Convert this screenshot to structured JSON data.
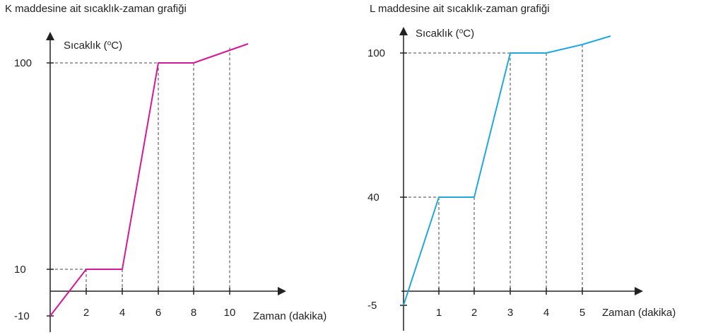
{
  "chart_data": [
    {
      "id": "K",
      "type": "line",
      "title": "K maddesine ait sıcaklık-zaman grafiği",
      "xlabel": "Zaman (dakika)",
      "ylabel": "Sıcaklık (°C)",
      "ylabel_prefix": "Sıcaklık (",
      "ylabel_sup": "o",
      "ylabel_suffix": "C)",
      "x_ticks": [
        "2",
        "4",
        "6",
        "8",
        "10"
      ],
      "y_ticks": [
        "-10",
        "10",
        "100"
      ],
      "color": "#d6179a",
      "series": [
        {
          "x": [
            0,
            2,
            4,
            6,
            8,
            11
          ],
          "y": [
            -10,
            10,
            10,
            100,
            100,
            110
          ]
        }
      ],
      "guides": [
        {
          "x": 2,
          "y": 10
        },
        {
          "x": 4,
          "y": 10
        },
        {
          "x": 6,
          "y": 100
        },
        {
          "x": 8,
          "y": 100
        },
        {
          "x": 10,
          "y": 108
        }
      ]
    },
    {
      "id": "L",
      "type": "line",
      "title": "L maddesine ait sıcaklık-zaman grafiği",
      "xlabel": "Zaman (dakika)",
      "ylabel": "Sıcaklık (°C)",
      "ylabel_prefix": "Sıcaklık (",
      "ylabel_sup": "o",
      "ylabel_suffix": "C)",
      "x_ticks": [
        "1",
        "2",
        "3",
        "4",
        "5"
      ],
      "y_ticks": [
        "-5",
        "40",
        "100"
      ],
      "color": "#1fa8e0",
      "series": [
        {
          "x": [
            0,
            1,
            2,
            3,
            4,
            5,
            5.8
          ],
          "y": [
            -5,
            40,
            40,
            100,
            100,
            104,
            107
          ]
        }
      ],
      "guides": [
        {
          "x": 1,
          "y": 40
        },
        {
          "x": 2,
          "y": 40
        },
        {
          "x": 3,
          "y": 100
        },
        {
          "x": 4,
          "y": 100
        },
        {
          "x": 5,
          "y": 104
        }
      ]
    }
  ]
}
